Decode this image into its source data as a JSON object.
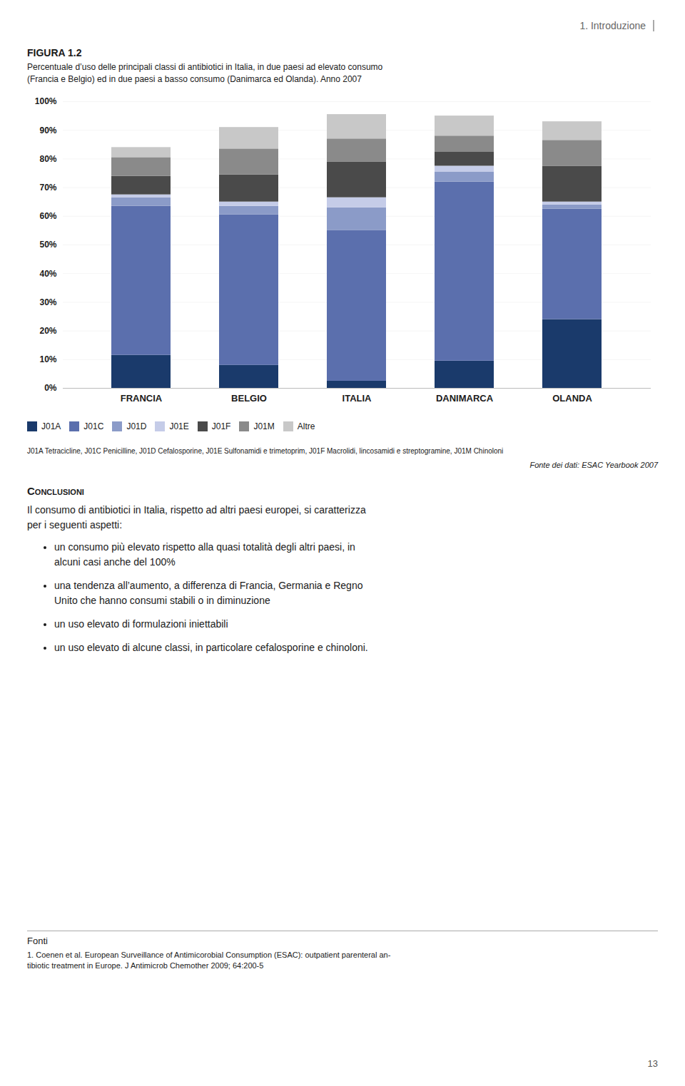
{
  "chart_data": {
    "type": "bar",
    "stacked": true,
    "title": "FIGURA 1.2",
    "subtitle": "Percentuale d’uso delle principali classi di antibiotici in Italia, in due paesi ad elevato consumo\n(Francia e Belgio) ed in due paesi a basso consumo (Danimarca ed Olanda). Anno 2007",
    "categories": [
      "FRANCIA",
      "BELGIO",
      "ITALIA",
      "DANIMARCA",
      "OLANDA"
    ],
    "series": [
      {
        "name": "J01A",
        "color": "#1a3a6b",
        "values": [
          11.5,
          8.0,
          2.5,
          9.5,
          24.0
        ]
      },
      {
        "name": "J01C",
        "color": "#5b6fad",
        "values": [
          52.0,
          52.5,
          52.5,
          62.5,
          38.5
        ]
      },
      {
        "name": "J01D",
        "color": "#8b9bc8",
        "values": [
          3.0,
          3.0,
          8.0,
          3.5,
          1.5
        ]
      },
      {
        "name": "J01E",
        "color": "#c5cce8",
        "values": [
          1.0,
          1.5,
          3.5,
          2.0,
          1.0
        ]
      },
      {
        "name": "J01F",
        "color": "#4a4a4a",
        "values": [
          6.5,
          9.5,
          12.5,
          5.0,
          12.5
        ]
      },
      {
        "name": "J01M",
        "color": "#8a8a8a",
        "values": [
          6.5,
          9.0,
          8.0,
          5.5,
          9.0
        ]
      },
      {
        "name": "Altre",
        "color": "#c8c8c8",
        "values": [
          3.5,
          7.5,
          8.5,
          7.0,
          6.5
        ]
      }
    ],
    "ylim": [
      0,
      100
    ],
    "yticks": [
      {
        "value": 0,
        "label": "0%"
      },
      {
        "value": 10,
        "label": "10%"
      },
      {
        "value": 20,
        "label": "20%"
      },
      {
        "value": 30,
        "label": "30%"
      },
      {
        "value": 40,
        "label": "40%"
      },
      {
        "value": 50,
        "label": "50%"
      },
      {
        "value": 60,
        "label": "60%"
      },
      {
        "value": 70,
        "label": "70%"
      },
      {
        "value": 80,
        "label": "80%"
      },
      {
        "value": 90,
        "label": "90%"
      },
      {
        "value": 100,
        "label": "100%"
      }
    ],
    "grid": true,
    "legend": "bottom",
    "annotations": [
      "1. Introduzione",
      "J01A Tetracicline, J01C Penicilline, J01D Cefalosporine, J01E Sulfonamidi e trimetoprim, J01F Macrolidi, lincosamidi e streptogramine, J01M Chinoloni",
      "Fonte dei dati: ESAC Yearbook 2007",
      "Conclusioni",
      "Il consumo di antibiotici in Italia, rispetto ad altri paesi europei, si caratterizza\nper i seguenti aspetti:",
      "un consumo più elevato rispetto alla quasi totalità degli altri paesi, in\nalcuni casi anche del 100%",
      "una tendenza all’aumento, a differenza di Francia, Germania e Regno\nUnito che hanno consumi stabili o in diminuzione",
      "un uso elevato di formulazioni iniettabili",
      "un uso elevato di alcune classi, in particolare cefalosporine e chinoloni.",
      "Fonti",
      "1. Coenen et al. European Surveillance of Antimicorobial Consumption (ESAC): outpatient parenteral an-\ntibiotic treatment in Europe. J Antimicrob Chemother 2009; 64:200-5",
      "13"
    ]
  }
}
